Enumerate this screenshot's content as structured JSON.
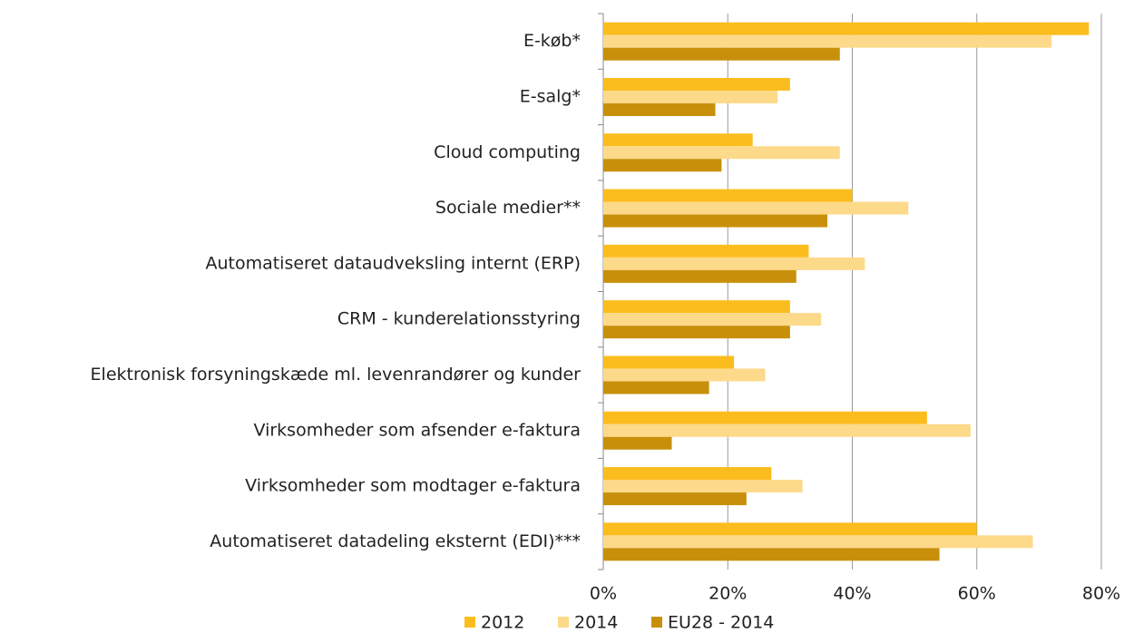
{
  "chart_data": {
    "type": "bar",
    "orientation": "horizontal",
    "categories": [
      "E-køb*",
      "E-salg*",
      "Cloud computing",
      "Sociale medier**",
      "Automatiseret dataudveksling internt (ERP)",
      "CRM - kunderelationsstyring",
      "Elektronisk forsyningskæde ml. levenrandører og kunder",
      "Virksomheder som afsender e-faktura",
      "Virksomheder som modtager e-faktura",
      "Automatiseret datadeling eksternt (EDI)***"
    ],
    "series": [
      {
        "name": "2012",
        "color": "#fbbd1e",
        "values": [
          78,
          30,
          24,
          40,
          33,
          30,
          21,
          52,
          27,
          60
        ]
      },
      {
        "name": "2014",
        "color": "#fdd98a",
        "values": [
          72,
          28,
          38,
          49,
          42,
          35,
          26,
          59,
          32,
          69
        ]
      },
      {
        "name": "EU28 - 2014",
        "color": "#c8900a",
        "values": [
          38,
          18,
          19,
          36,
          31,
          30,
          17,
          11,
          23,
          54
        ]
      }
    ],
    "xlim": [
      0,
      80
    ],
    "xticks": [
      {
        "value": 0,
        "label": "0%"
      },
      {
        "value": 20,
        "label": "20%"
      },
      {
        "value": 40,
        "label": "40%"
      },
      {
        "value": 60,
        "label": "60%"
      },
      {
        "value": 80,
        "label": "80%"
      }
    ],
    "grid": true,
    "legend": "bottom"
  }
}
